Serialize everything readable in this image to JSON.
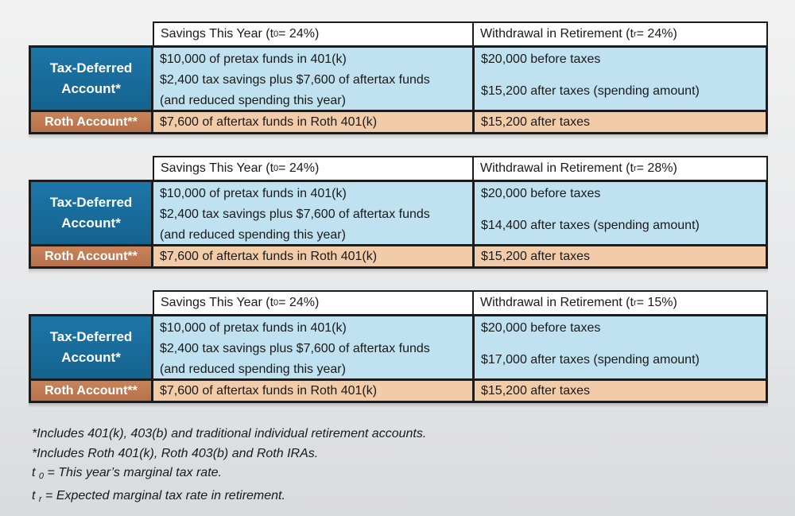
{
  "tables": [
    {
      "savings_header": "Savings This Year (t",
      "savings_sub": "0",
      "savings_tail": " = 24%)",
      "withdrawal_header": "Withdrawal in Retirement (t",
      "withdrawal_sub": "r",
      "withdrawal_tail": " = 24%)",
      "td_label_1": "Tax-Deferred",
      "td_label_2": "Account*",
      "td_savings_1": "$10,000 of pretax funds in 401(k)",
      "td_savings_2": "$2,400 tax savings plus $7,600 of aftertax funds",
      "td_savings_3": "(and reduced spending this year)",
      "td_withdrawal_1": "$20,000 before taxes",
      "td_withdrawal_2": "$15,200 after taxes (spending amount)",
      "roth_label": "Roth Account**",
      "roth_savings": "$7,600 of aftertax funds in Roth 401(k)",
      "roth_withdrawal": "$15,200 after taxes"
    },
    {
      "savings_header": "Savings This Year (t",
      "savings_sub": "0",
      "savings_tail": " = 24%)",
      "withdrawal_header": "Withdrawal in Retirement (t",
      "withdrawal_sub": "r",
      "withdrawal_tail": " = 28%)",
      "td_label_1": "Tax-Deferred",
      "td_label_2": "Account*",
      "td_savings_1": "$10,000 of pretax funds in 401(k)",
      "td_savings_2": "$2,400 tax savings plus $7,600 of aftertax funds",
      "td_savings_3": "(and reduced spending this year)",
      "td_withdrawal_1": "$20,000 before taxes",
      "td_withdrawal_2": "$14,400 after taxes (spending amount)",
      "roth_label": "Roth Account**",
      "roth_savings": "$7,600 of aftertax funds in Roth 401(k)",
      "roth_withdrawal": "$15,200 after taxes"
    },
    {
      "savings_header": "Savings This Year (t",
      "savings_sub": "0",
      "savings_tail": " = 24%)",
      "withdrawal_header": "Withdrawal in Retirement (t",
      "withdrawal_sub": "r",
      "withdrawal_tail": " = 15%)",
      "td_label_1": "Tax-Deferred",
      "td_label_2": "Account*",
      "td_savings_1": "$10,000 of pretax funds in 401(k)",
      "td_savings_2": "$2,400 tax savings plus $7,600 of aftertax funds",
      "td_savings_3": "(and reduced spending this year)",
      "td_withdrawal_1": "$20,000 before taxes",
      "td_withdrawal_2": "$17,000 after taxes (spending amount)",
      "roth_label": "Roth Account**",
      "roth_savings": "$7,600 of aftertax funds in Roth 401(k)",
      "roth_withdrawal": "$15,200 after taxes"
    }
  ],
  "notes": {
    "line1": "*Includes 401(k), 403(b) and traditional individual retirement accounts.",
    "line2": "*Includes Roth 401(k), Roth 403(b) and Roth IRAs.",
    "t0_symbol": "t",
    "t0_sub": "0",
    "t0_text": " = This year’s marginal tax rate.",
    "tr_symbol": "t",
    "tr_sub": "r",
    "tr_text": " = Expected marginal tax rate in retirement."
  },
  "colors": {
    "tax_deferred_blue": "#1d76a8",
    "light_blue_cell": "#bfe1f0",
    "roth_label": "#c9845a",
    "roth_cell": "#f2cba8"
  }
}
